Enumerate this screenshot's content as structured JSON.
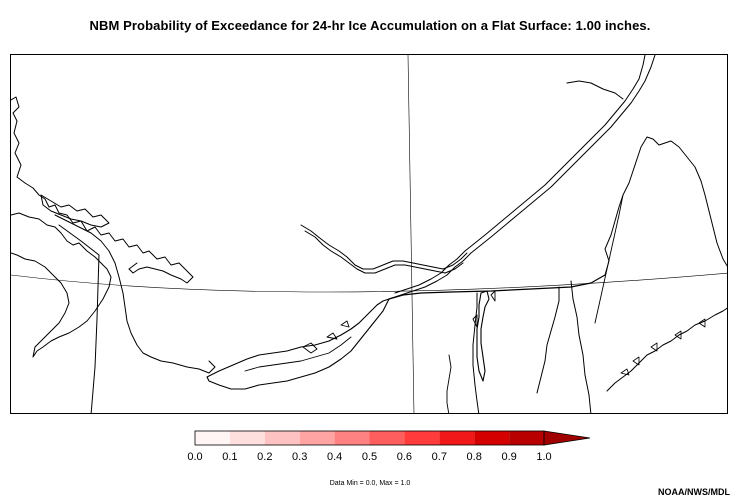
{
  "title": "NBM Probability of Exceedance for 24-hr Ice Accumulation on a Flat Surface: 1.00 inches.",
  "legend": {
    "ticks": [
      "0.0",
      "0.1",
      "0.2",
      "0.3",
      "0.4",
      "0.5",
      "0.6",
      "0.7",
      "0.8",
      "0.9",
      "1.0"
    ],
    "colors": [
      "#fff5f5",
      "#ffdede",
      "#ffc2c2",
      "#ffa3a3",
      "#ff8282",
      "#ff5e5e",
      "#ff3b3b",
      "#f01818",
      "#d40000",
      "#b80000"
    ],
    "extend_color": "#a00000"
  },
  "data_range": "Data Min = 0.0, Max = 1.0",
  "credit": "NOAA/NWS/MDL"
}
